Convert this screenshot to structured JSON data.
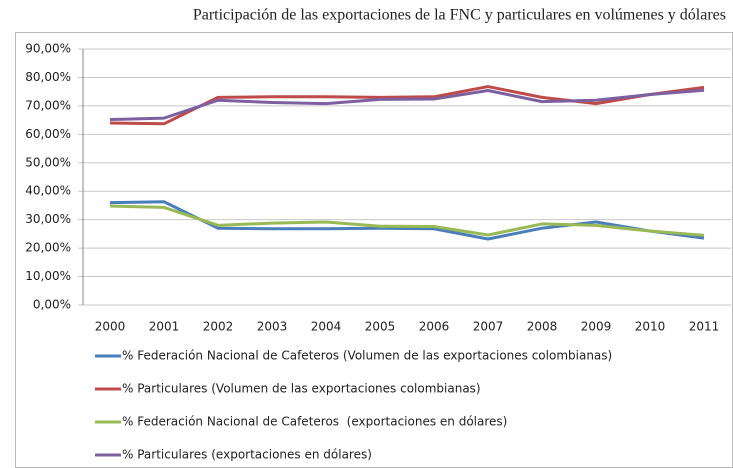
{
  "chart_data": {
    "type": "line",
    "title": "Participación de las exportaciones de la FNC y particulares en volúmenes y dólares",
    "categories": [
      "2000",
      "2001",
      "2002",
      "2003",
      "2004",
      "2005",
      "2006",
      "2007",
      "2008",
      "2009",
      "2010",
      "2011"
    ],
    "series": [
      {
        "name": "% Federación Nacional de Cafeteros (Volumen de las exportaciones colombianas)",
        "color": "#4a7ebb",
        "values": [
          36,
          36.3,
          27,
          26.8,
          26.8,
          27,
          26.8,
          23.2,
          27,
          29.2,
          26,
          23.5
        ]
      },
      {
        "name": "% Particulares (Volumen de las exportaciones colombianas)",
        "color": "#be4b48",
        "values": [
          64,
          63.7,
          73,
          73.2,
          73.2,
          73,
          73.2,
          76.8,
          73,
          70.8,
          74,
          76.5
        ]
      },
      {
        "name": "% Federación Nacional de Cafeteros  (exportaciones en dólares)",
        "color": "#98b954",
        "values": [
          34.8,
          34.3,
          28,
          28.8,
          29.2,
          27.7,
          27.6,
          24.6,
          28.5,
          28,
          26,
          24.5
        ]
      },
      {
        "name": "% Particulares (exportaciones en dólares)",
        "color": "#7d60a0",
        "values": [
          65.2,
          65.7,
          72,
          71.2,
          70.8,
          72.3,
          72.4,
          75.4,
          71.5,
          72,
          74,
          75.5
        ]
      }
    ],
    "ylim": [
      0,
      90
    ],
    "yticks": [
      {
        "value": 0,
        "label": "0,00%"
      },
      {
        "value": 10,
        "label": "10,00%"
      },
      {
        "value": 20,
        "label": "20,00%"
      },
      {
        "value": 30,
        "label": "30,00%"
      },
      {
        "value": 40,
        "label": "40,00%"
      },
      {
        "value": 50,
        "label": "50,00%"
      },
      {
        "value": 60,
        "label": "60,00%"
      },
      {
        "value": 70,
        "label": "70,00%"
      },
      {
        "value": 80,
        "label": "80,00%"
      },
      {
        "value": 90,
        "label": "90,00%"
      }
    ],
    "grid": true,
    "legend": "bottom"
  }
}
